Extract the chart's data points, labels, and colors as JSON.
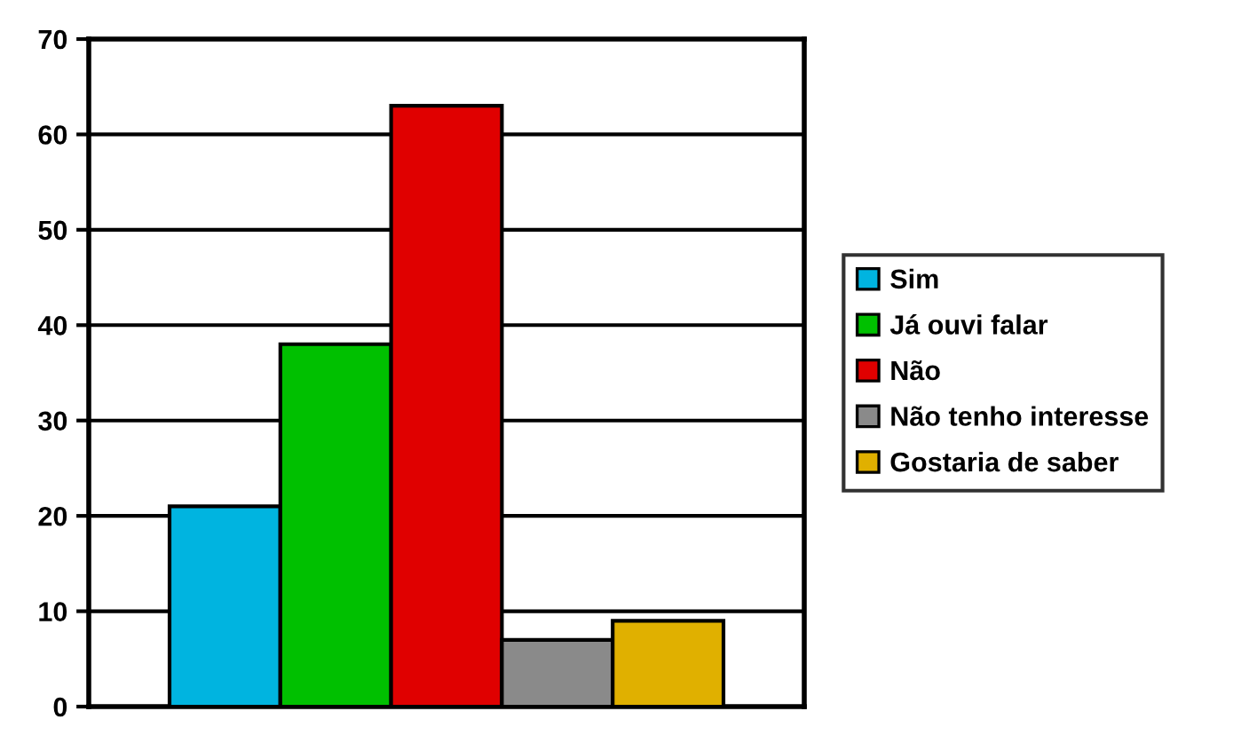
{
  "chart_data": {
    "type": "bar",
    "categories": [
      null
    ],
    "series": [
      {
        "name": "Sim",
        "color": "#00b4e0",
        "values": [
          21
        ]
      },
      {
        "name": "Já ouvi falar",
        "color": "#00c000",
        "values": [
          38
        ]
      },
      {
        "name": "Não",
        "color": "#e00000",
        "values": [
          63
        ]
      },
      {
        "name": "Não tenho interesse",
        "color": "#8a8a8a",
        "values": [
          7
        ]
      },
      {
        "name": "Gostaria de saber",
        "color": "#e0b000",
        "values": [
          9
        ]
      }
    ],
    "ylim": [
      0,
      70
    ],
    "yticks": [
      0,
      10,
      20,
      30,
      40,
      50,
      60,
      70
    ],
    "grid": "y",
    "legend": "right"
  }
}
